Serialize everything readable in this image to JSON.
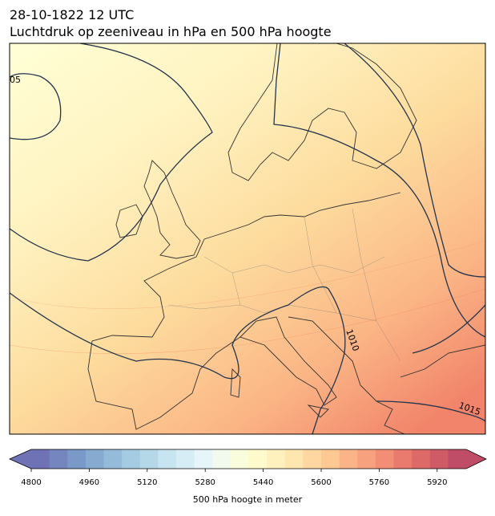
{
  "header": {
    "title_line1": "28-10-1822 12 UTC",
    "title_line2": "Luchtdruk op zeeniveau in hPa en 500 hPa hoogte"
  },
  "map": {
    "contour_labels": [
      "05",
      "1010",
      "1015"
    ]
  },
  "chart_data": {
    "type": "colorbar",
    "label": "500 hPa hoogte in meter",
    "xlim": [
      4800,
      6000
    ],
    "xticks": [
      4800,
      4960,
      5120,
      5280,
      5440,
      5600,
      5760,
      5920
    ],
    "levels": [
      4800,
      4850,
      4900,
      4950,
      5000,
      5050,
      5100,
      5150,
      5200,
      5250,
      5300,
      5350,
      5400,
      5450,
      5500,
      5550,
      5600,
      5650,
      5700,
      5750,
      5800,
      5850,
      5900,
      5950,
      6000
    ],
    "colormap": "RdYlBu_r"
  }
}
